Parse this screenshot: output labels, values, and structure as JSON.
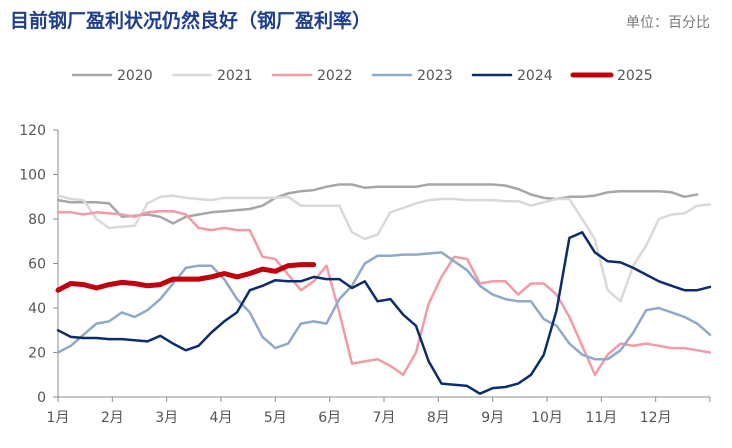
{
  "title": "目前钢厂盈利状况仍然良好（钢厂盈利率）",
  "unit_label": "单位：百分比",
  "chart_data": {
    "type": "line",
    "title": "目前钢厂盈利状况仍然良好（钢厂盈利率）",
    "ylabel": "单位：百分比",
    "ylim": [
      0,
      120
    ],
    "yticks": [
      0,
      20,
      40,
      60,
      80,
      100,
      120
    ],
    "xticks": [
      "1月",
      "2月",
      "3月",
      "4月",
      "5月",
      "6月",
      "7月",
      "8月",
      "9月",
      "10月",
      "11月",
      "12月"
    ],
    "x_unit": "week",
    "grid": false,
    "legend_position": "top",
    "series": [
      {
        "name": "2020",
        "color": "#a6a6a6",
        "width": 2.5,
        "x": [
          1,
          2,
          3,
          4,
          5,
          6,
          7,
          8,
          9,
          10,
          11,
          12,
          13,
          14,
          15,
          16,
          17,
          18,
          19,
          20,
          21,
          22,
          23,
          24,
          25,
          26,
          27,
          28,
          29,
          30,
          31,
          32,
          33,
          34,
          35,
          36,
          37,
          38,
          39,
          40,
          41,
          42,
          43,
          44,
          45,
          46,
          47,
          48,
          49,
          50,
          51
        ],
        "values": [
          88.5,
          87.5,
          87.5,
          87.5,
          87,
          81,
          81.5,
          82,
          81,
          78,
          81,
          82,
          83,
          83.5,
          84,
          84.5,
          86,
          89.5,
          91.5,
          92.5,
          93,
          94.5,
          95.5,
          95.5,
          94,
          94.5,
          94.5,
          94.5,
          94.5,
          95.5,
          95.5,
          95.5,
          95.5,
          95.5,
          95.5,
          95,
          93.5,
          91,
          89.5,
          89,
          90,
          90,
          90.5,
          92,
          92.5,
          92.5,
          92.5,
          92.5,
          92,
          90,
          91
        ]
      },
      {
        "name": "2021",
        "color": "#d9d9d9",
        "width": 2.5,
        "x": [
          1,
          2,
          3,
          4,
          5,
          6,
          7,
          8,
          9,
          10,
          11,
          12,
          13,
          14,
          15,
          16,
          17,
          18,
          19,
          20,
          21,
          22,
          23,
          24,
          25,
          26,
          27,
          28,
          29,
          30,
          31,
          32,
          33,
          34,
          35,
          36,
          37,
          38,
          39,
          40,
          41,
          42,
          43,
          44,
          45,
          46,
          47,
          48,
          49,
          50,
          51,
          52
        ],
        "values": [
          90.5,
          89,
          88.5,
          80,
          76,
          76.5,
          77,
          87,
          90,
          90.5,
          89.5,
          89,
          88.5,
          89.5,
          89.5,
          89.5,
          89.5,
          89.5,
          90,
          86,
          86,
          86,
          86,
          74,
          71,
          73,
          83,
          85,
          87,
          88.5,
          89,
          89,
          88.5,
          88.5,
          88.5,
          88,
          88,
          86,
          87.5,
          89,
          89,
          80,
          71,
          48,
          43,
          59,
          68,
          80,
          82,
          82.5,
          86,
          86.5
        ]
      },
      {
        "name": "2022",
        "color": "#f29aa6",
        "width": 2.5,
        "x": [
          1,
          2,
          3,
          4,
          5,
          6,
          7,
          8,
          9,
          10,
          11,
          12,
          13,
          14,
          15,
          16,
          17,
          18,
          19,
          20,
          21,
          22,
          23,
          24,
          25,
          26,
          27,
          28,
          29,
          30,
          31,
          32,
          33,
          34,
          35,
          36,
          37,
          38,
          39,
          40,
          41,
          42,
          43,
          44,
          45,
          46,
          47,
          48,
          49,
          50,
          51,
          52
        ],
        "values": [
          83,
          83,
          82,
          83,
          82.5,
          82,
          81,
          83,
          83.5,
          83.5,
          82,
          76,
          75,
          76,
          75,
          75,
          63,
          62,
          55,
          48,
          52,
          59,
          38,
          15,
          16,
          17,
          14,
          10,
          20,
          42,
          54,
          63,
          62,
          51,
          52,
          52,
          46,
          51,
          51,
          46,
          36,
          23,
          10,
          19,
          24,
          23,
          24,
          23,
          22,
          22,
          21,
          20
        ]
      },
      {
        "name": "2023",
        "color": "#8ea9c9",
        "width": 2.5,
        "x": [
          1,
          2,
          3,
          4,
          5,
          6,
          7,
          8,
          9,
          10,
          11,
          12,
          13,
          14,
          15,
          16,
          17,
          18,
          19,
          20,
          21,
          22,
          23,
          24,
          25,
          26,
          27,
          28,
          29,
          30,
          31,
          32,
          33,
          34,
          35,
          36,
          37,
          38,
          39,
          40,
          41,
          42,
          43,
          44,
          45,
          46,
          47,
          48,
          49,
          50,
          51,
          52
        ],
        "values": [
          20,
          23,
          28,
          33,
          34,
          38,
          36,
          39,
          44,
          51,
          58,
          59,
          59,
          53,
          44,
          38,
          27,
          22,
          24,
          33,
          34,
          33,
          44,
          50,
          60,
          63.5,
          63.5,
          64,
          64,
          64.5,
          65,
          61,
          57,
          50,
          46,
          44,
          43,
          43,
          35,
          32,
          24,
          19,
          17,
          17,
          21,
          29,
          39,
          40,
          38,
          36,
          33,
          28
        ]
      },
      {
        "name": "2024",
        "color": "#0c2d6b",
        "width": 2.5,
        "x": [
          1,
          2,
          3,
          4,
          5,
          6,
          7,
          8,
          9,
          10,
          11,
          12,
          13,
          14,
          15,
          16,
          17,
          18,
          19,
          20,
          21,
          22,
          23,
          24,
          25,
          26,
          27,
          28,
          29,
          30,
          31,
          32,
          33,
          34,
          35,
          36,
          37,
          38,
          39,
          40,
          41,
          42,
          43,
          44,
          45,
          46,
          47,
          48,
          49,
          50,
          51,
          52
        ],
        "values": [
          30,
          27,
          26.5,
          26.5,
          26,
          26,
          25.5,
          25,
          27.5,
          24,
          21,
          23,
          29,
          34,
          38,
          48,
          50,
          52.5,
          52,
          52,
          54,
          53,
          53,
          49,
          52,
          43,
          44,
          37,
          32,
          16,
          6,
          5.5,
          5,
          1.5,
          4,
          4.5,
          6,
          10,
          19,
          39,
          71.5,
          74,
          65,
          61,
          60.5,
          58,
          55,
          52,
          50,
          48,
          48,
          49.5
        ]
      },
      {
        "name": "2025",
        "color": "#c0000c",
        "width": 5,
        "x": [
          1,
          2,
          3,
          4,
          5,
          6,
          7,
          8,
          9,
          10,
          11,
          12,
          13,
          14,
          15,
          16,
          17,
          18,
          19,
          20,
          21
        ],
        "values": [
          48,
          51,
          50.5,
          49,
          50.5,
          51.5,
          51,
          50,
          50.5,
          53,
          53,
          53,
          54,
          55.5,
          54,
          55.5,
          57.5,
          56.5,
          59,
          59.5,
          59.5
        ]
      }
    ]
  }
}
